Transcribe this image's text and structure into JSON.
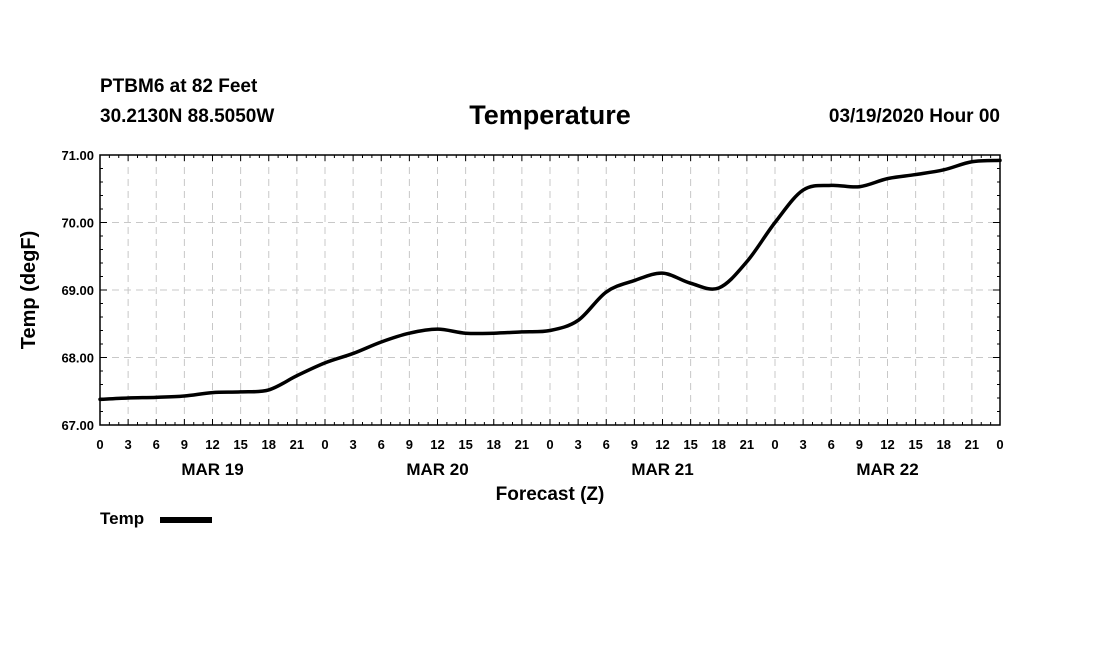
{
  "header": {
    "station": "PTBM6 at 82 Feet",
    "coordinates": "30.2130N 88.5050W",
    "datetime": "03/19/2020 Hour 00"
  },
  "legend": {
    "label": "Temp",
    "color": "#000000"
  },
  "chart_data": {
    "type": "line",
    "title": "Temperature",
    "xlabel": "Forecast (Z)",
    "ylabel": "Temp (degF)",
    "ylim": [
      67.0,
      71.0
    ],
    "xlim": [
      0,
      96
    ],
    "y_ticks": [
      "67.00",
      "68.00",
      "69.00",
      "70.00",
      "71.00"
    ],
    "x_tick_labels": [
      "0",
      "3",
      "6",
      "9",
      "12",
      "15",
      "18",
      "21",
      "0",
      "3",
      "6",
      "9",
      "12",
      "15",
      "18",
      "21",
      "0",
      "3",
      "6",
      "9",
      "12",
      "15",
      "18",
      "21",
      "0",
      "3",
      "6",
      "9",
      "12",
      "15",
      "18",
      "21",
      "0"
    ],
    "day_labels": [
      {
        "label": "MAR 19",
        "hour": 12
      },
      {
        "label": "MAR 20",
        "hour": 36
      },
      {
        "label": "MAR 21",
        "hour": 60
      },
      {
        "label": "MAR 22",
        "hour": 84
      }
    ],
    "grid": true,
    "series": [
      {
        "name": "Temp",
        "x": [
          0,
          3,
          6,
          9,
          12,
          15,
          18,
          21,
          24,
          27,
          30,
          33,
          36,
          39,
          42,
          45,
          48,
          51,
          54,
          57,
          60,
          63,
          66,
          69,
          72,
          75,
          78,
          81,
          84,
          87,
          90,
          93,
          96
        ],
        "values": [
          67.38,
          67.4,
          67.41,
          67.43,
          67.48,
          67.49,
          67.52,
          67.73,
          67.92,
          68.06,
          68.23,
          68.36,
          68.42,
          68.36,
          68.36,
          68.38,
          68.4,
          68.55,
          68.97,
          69.14,
          69.25,
          69.1,
          69.03,
          69.42,
          70.0,
          70.48,
          70.55,
          70.53,
          70.65,
          70.71,
          70.78,
          70.9,
          70.92
        ]
      }
    ]
  }
}
